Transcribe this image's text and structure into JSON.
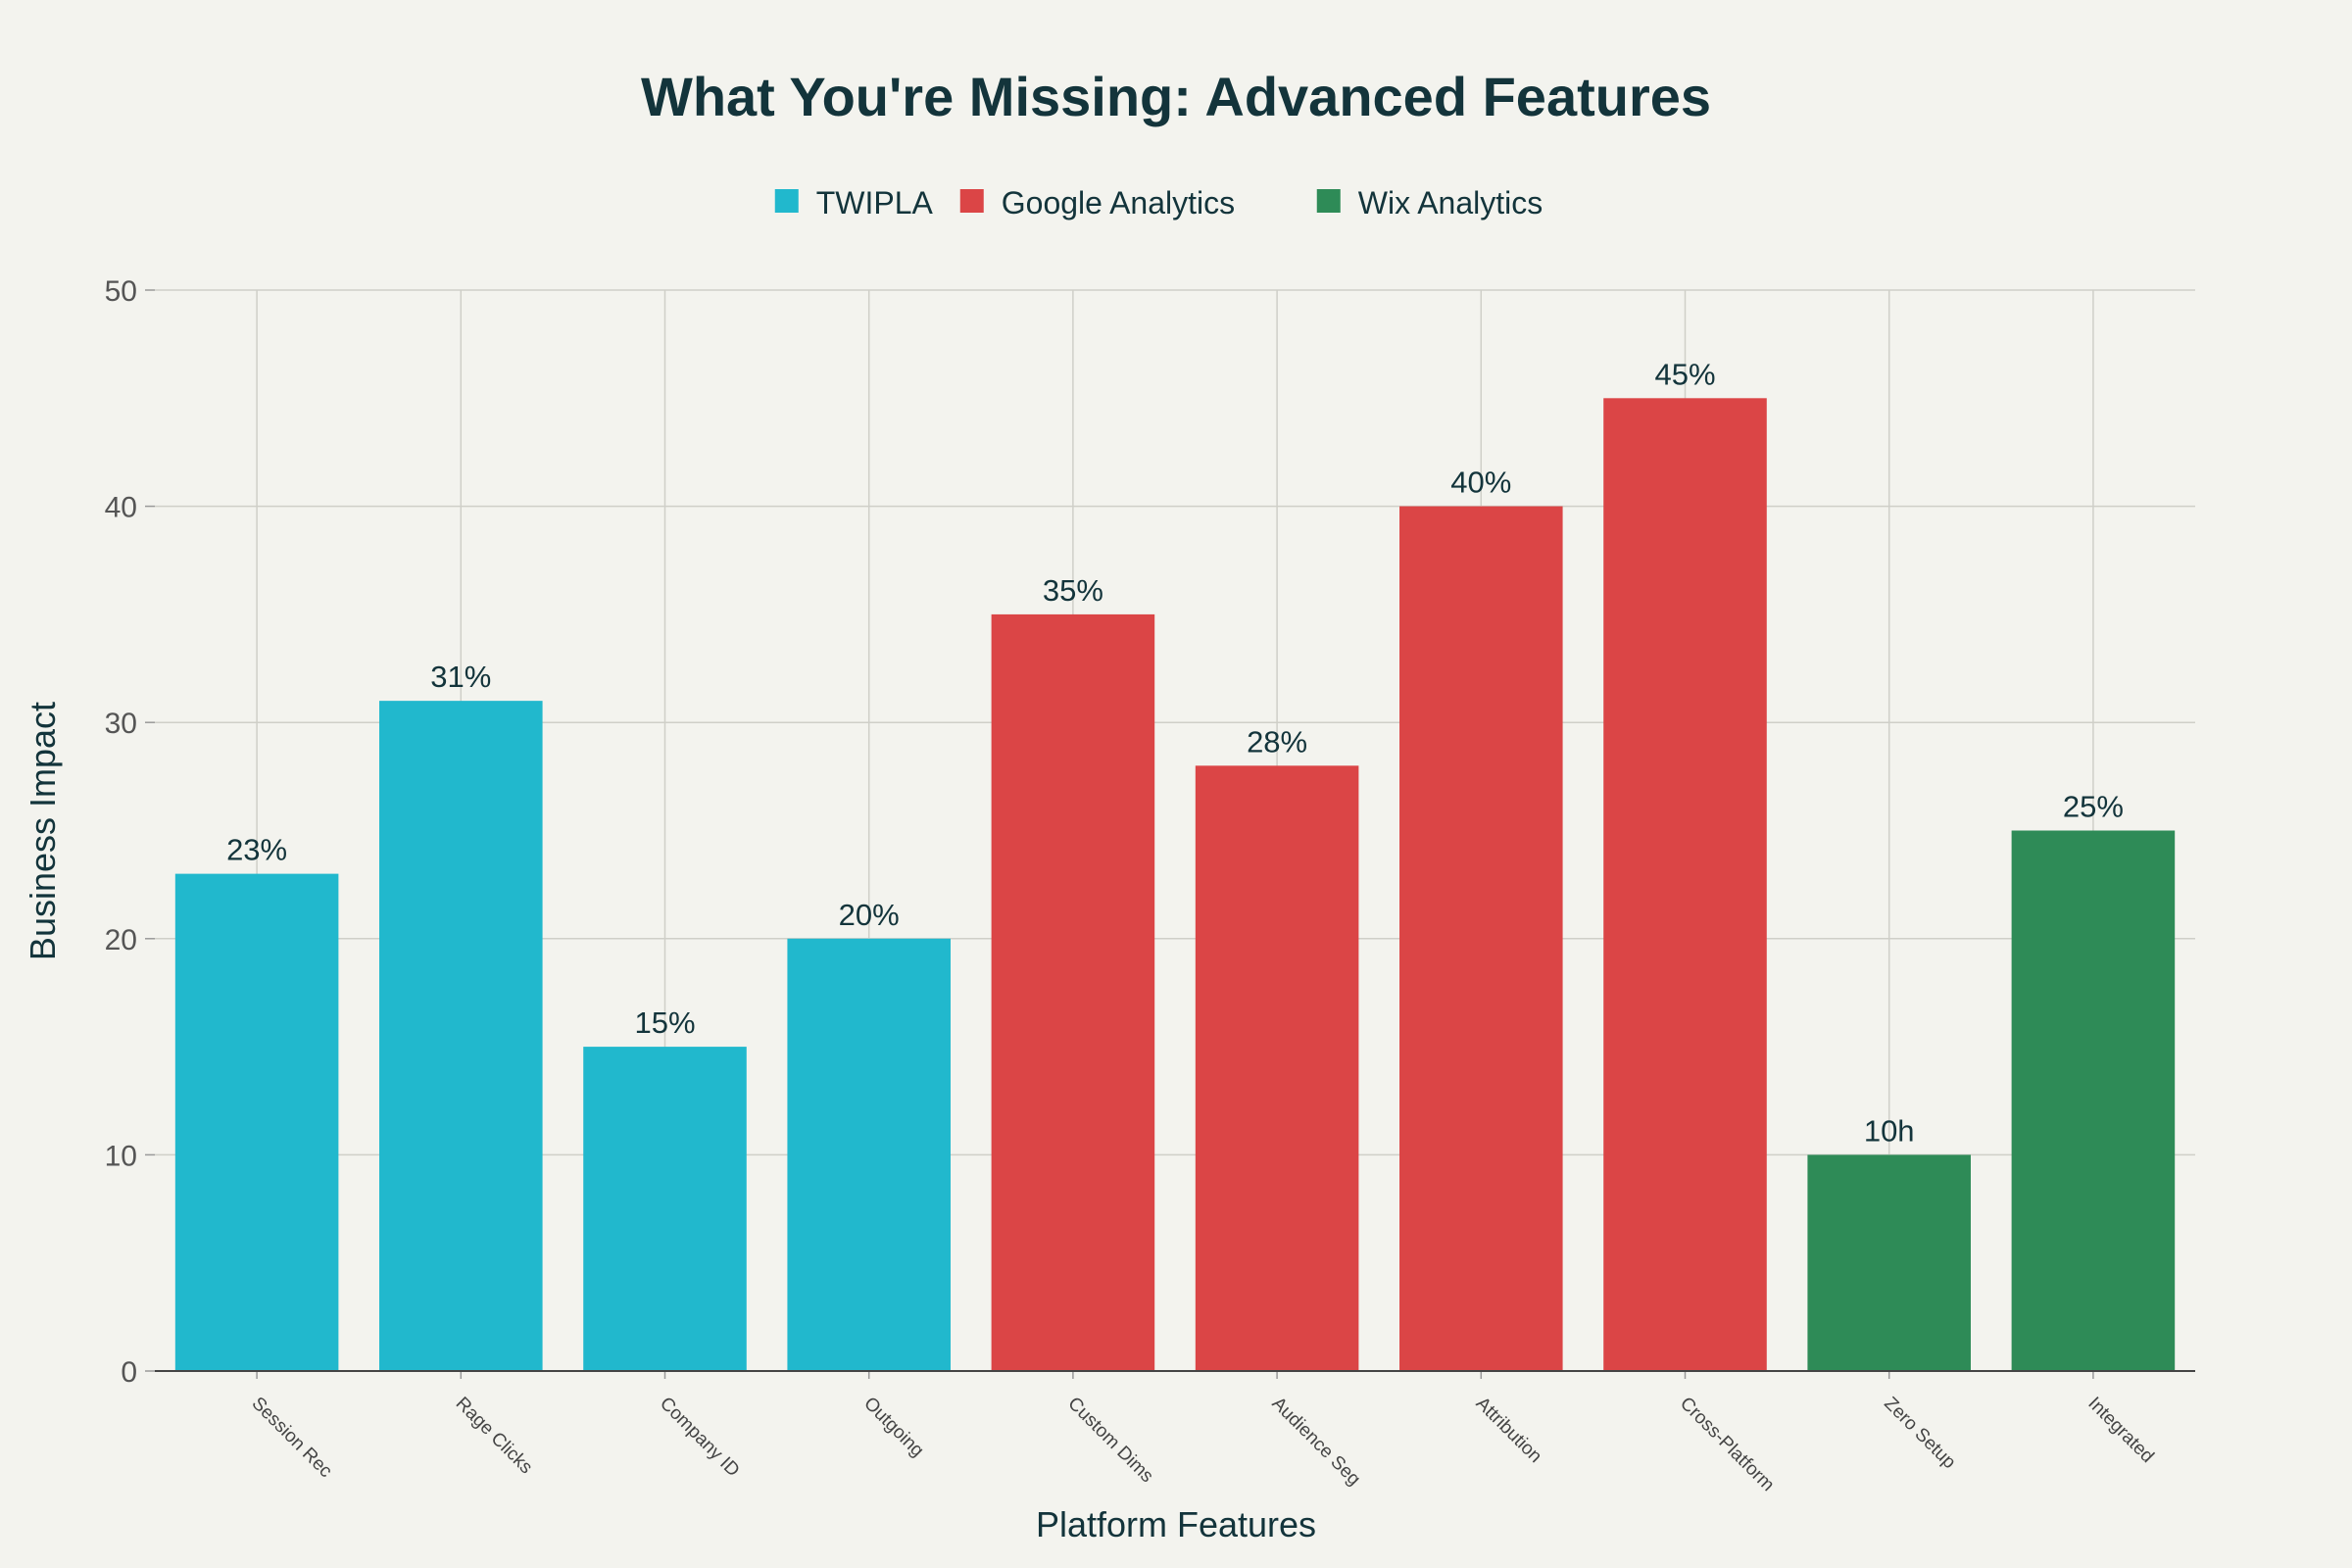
{
  "chart_data": {
    "type": "bar",
    "title": "What You're Missing: Advanced Features",
    "xlabel": "Platform Features",
    "ylabel": "Business Impact",
    "ylim": [
      0,
      50
    ],
    "yticks": [
      0,
      10,
      20,
      30,
      40,
      50
    ],
    "grid": true,
    "legend_position": "top-center",
    "categories": [
      "Session Rec",
      "Rage Clicks",
      "Company ID",
      "Outgoing",
      "Custom Dims",
      "Audience Seg",
      "Attribution",
      "Cross-Platform",
      "Zero Setup",
      "Integrated"
    ],
    "series": [
      {
        "name": "TWIPLA",
        "color": "#21b8cd",
        "points": [
          {
            "category": "Session Rec",
            "value": 23,
            "label": "23%"
          },
          {
            "category": "Rage Clicks",
            "value": 31,
            "label": "31%"
          },
          {
            "category": "Company ID",
            "value": 15,
            "label": "15%"
          },
          {
            "category": "Outgoing",
            "value": 20,
            "label": "20%"
          }
        ]
      },
      {
        "name": "Google Analytics",
        "color": "#db4546",
        "points": [
          {
            "category": "Custom Dims",
            "value": 35,
            "label": "35%"
          },
          {
            "category": "Audience Seg",
            "value": 28,
            "label": "28%"
          },
          {
            "category": "Attribution",
            "value": 40,
            "label": "40%"
          },
          {
            "category": "Cross-Platform",
            "value": 45,
            "label": "45%"
          }
        ]
      },
      {
        "name": "Wix Analytics",
        "color": "#2e8b57",
        "points": [
          {
            "category": "Zero Setup",
            "value": 10,
            "label": "10h"
          },
          {
            "category": "Integrated",
            "value": 25,
            "label": "25%"
          }
        ]
      }
    ]
  }
}
